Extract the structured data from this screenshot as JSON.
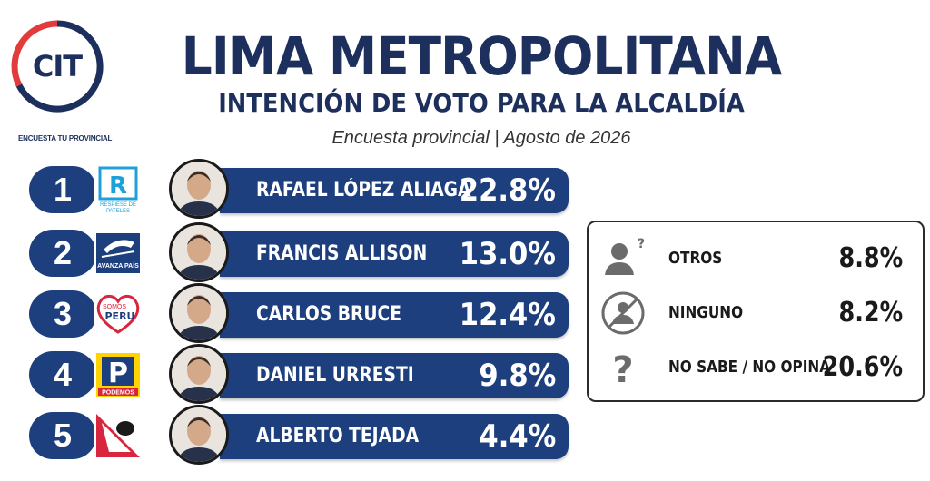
{
  "logo": {
    "text": "CIT",
    "caption": "ENCUESTA TU PROVINCIAL"
  },
  "header": {
    "title": "LIMA METROPOLITANA",
    "subtitle": "INTENCIÓN DE VOTO PARA LA ALCALDÍA",
    "source": "Encuesta provincial | Agosto de 2026"
  },
  "chart_data": {
    "type": "bar",
    "categories": [
      "RAFAEL LÓPEZ ALIAGA",
      "FRANCIS ALLISON",
      "CARLOS BRUCE",
      "DANIEL URRESTI",
      "ALBERTO TEJADA"
    ],
    "values": [
      22.8,
      13.0,
      12.4,
      9.8,
      4.4
    ],
    "value_labels": [
      "22.8%",
      "13.0%",
      "12.4%",
      "9.8%",
      "4.4%"
    ],
    "ranks": [
      "1",
      "2",
      "3",
      "4",
      "5"
    ],
    "parties": [
      {
        "icon": "renovacion-popular-logo",
        "text": "RESPIESE DE PATELES"
      },
      {
        "icon": "avanza-pais-logo",
        "text": "AVANZA PAÍS"
      },
      {
        "icon": "somos-peru-logo",
        "text": "SOMOS PERU"
      },
      {
        "icon": "podemos-logo",
        "text": "PODEMOS"
      },
      {
        "icon": "peru-primero-logo",
        "text": ""
      }
    ],
    "bar_color": "#1e3f7e",
    "other_responses": [
      {
        "icon": "person-question-icon",
        "label": "OTROS",
        "value": "8.8%"
      },
      {
        "icon": "person-crossed-icon",
        "label": "NINGUNO",
        "value": "8.2%"
      },
      {
        "icon": "question-mark-icon",
        "label": "NO SABE / NO OPINA",
        "value": "20.6%"
      }
    ]
  }
}
